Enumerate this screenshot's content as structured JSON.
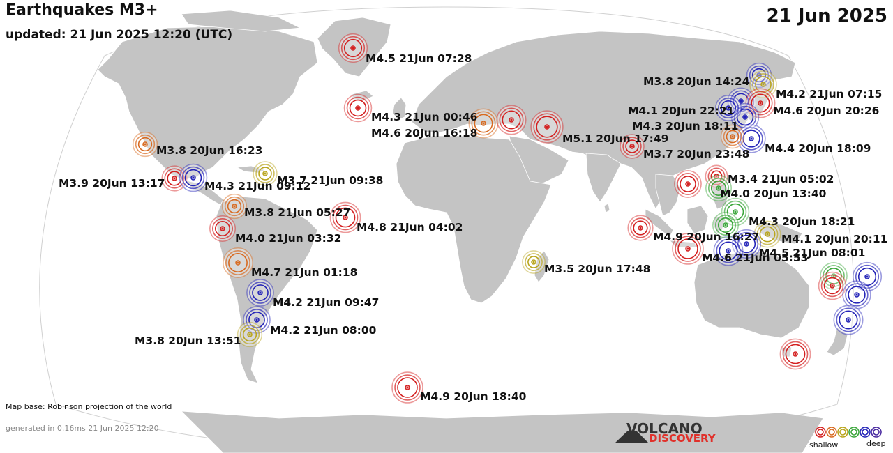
{
  "header": {
    "title": "Earthquakes M3+",
    "updated": "updated: 21 Jun 2025 12:20 (UTC)",
    "date": "21 Jun 2025"
  },
  "footer": {
    "map_base": "Map base: Robinson projection of the world",
    "generated": "generated in 0.16ms 21 Jun 2025 12:20",
    "logo_top": "VOLCANO",
    "logo_bottom": "DISCOVERY"
  },
  "legend": {
    "shallow_label": "shallow",
    "deep_label": "deep",
    "depth_colors": [
      "#d42020",
      "#d86a20",
      "#b9a51c",
      "#3aa63a",
      "#2424b8",
      "#4a2aa0"
    ]
  },
  "colors": {
    "ocean": "#ffffff",
    "land": "#c4c4c4",
    "coast": "#ffffff",
    "frame": "#d0d0d0"
  },
  "quakes": [
    {
      "label": "M4.5 21Jun 07:28",
      "mag": 4.5,
      "depth": "shallow"
    },
    {
      "label": "M4.3 21Jun 00:46",
      "mag": 4.3,
      "depth": "shallow"
    },
    {
      "label": "M4.6 20Jun 16:18",
      "mag": 4.6,
      "depth": "intermediate"
    },
    {
      "label": "M5.1 20Jun 17:49",
      "mag": 5.1,
      "depth": "shallow"
    },
    {
      "label": "M3.7 20Jun 23:48",
      "mag": 3.7,
      "depth": "shallow"
    },
    {
      "label": "M3.8 20Jun 14:24",
      "mag": 3.8,
      "depth": "deep"
    },
    {
      "label": "M4.2 21Jun 07:15",
      "mag": 4.2,
      "depth": "medium"
    },
    {
      "label": "M4.1 20Jun 22:21",
      "mag": 4.1,
      "depth": "deep"
    },
    {
      "label": "M4.6 20Jun 20:26",
      "mag": 4.6,
      "depth": "shallow"
    },
    {
      "label": "M4.3 20Jun 18:11",
      "mag": 4.3,
      "depth": "deep"
    },
    {
      "label": "M4.4 20Jun 18:09",
      "mag": 4.4,
      "depth": "deep"
    },
    {
      "label": "M3.4 21Jun 05:02",
      "mag": 3.4,
      "depth": "shallow"
    },
    {
      "label": "M4.0 20Jun 13:40",
      "mag": 4.0,
      "depth": "medium-deep"
    },
    {
      "label": "M4.3 20Jun 18:21",
      "mag": 4.3,
      "depth": "medium-deep"
    },
    {
      "label": "M4.9 20Jun 16:27",
      "mag": 4.9,
      "depth": "shallow"
    },
    {
      "label": "M4.1 20Jun 20:11",
      "mag": 4.1,
      "depth": "medium"
    },
    {
      "label": "M4.5 21Jun 08:01",
      "mag": 4.5,
      "depth": "deep"
    },
    {
      "label": "M4.6 21Jun 05:53",
      "mag": 4.6,
      "depth": "deep"
    },
    {
      "label": "M3.8 20Jun 16:23",
      "mag": 3.8,
      "depth": "intermediate"
    },
    {
      "label": "M3.9 20Jun 13:17",
      "mag": 3.9,
      "depth": "shallow"
    },
    {
      "label": "M4.3 21Jun 09:12",
      "mag": 4.3,
      "depth": "deep"
    },
    {
      "label": "M3.7 21Jun 09:38",
      "mag": 3.7,
      "depth": "medium"
    },
    {
      "label": "M3.8 21Jun 05:27",
      "mag": 3.8,
      "depth": "intermediate"
    },
    {
      "label": "M4.8 21Jun 04:02",
      "mag": 4.8,
      "depth": "shallow"
    },
    {
      "label": "M4.0 21Jun 03:32",
      "mag": 4.0,
      "depth": "shallow"
    },
    {
      "label": "M4.7 21Jun 01:18",
      "mag": 4.7,
      "depth": "intermediate"
    },
    {
      "label": "M3.5 20Jun 17:48",
      "mag": 3.5,
      "depth": "medium"
    },
    {
      "label": "M4.2 21Jun 09:47",
      "mag": 4.2,
      "depth": "deep"
    },
    {
      "label": "M4.2 21Jun 08:00",
      "mag": 4.2,
      "depth": "deep"
    },
    {
      "label": "M3.8 20Jun 13:51",
      "mag": 3.8,
      "depth": "medium"
    },
    {
      "label": "M4.9 20Jun 18:40",
      "mag": 4.9,
      "depth": "shallow"
    }
  ],
  "unlabeled_quakes": [
    {
      "mag": 4.6,
      "depth": "shallow"
    },
    {
      "mag": 4.0,
      "depth": "deep"
    },
    {
      "mag": 4.2,
      "depth": "medium-deep"
    },
    {
      "mag": 4.3,
      "depth": "shallow"
    },
    {
      "mag": 4.5,
      "depth": "deep"
    },
    {
      "mag": 4.4,
      "depth": "deep"
    },
    {
      "mag": 4.6,
      "depth": "deep"
    },
    {
      "mag": 4.8,
      "depth": "shallow"
    },
    {
      "mag": 3.9,
      "depth": "shallow"
    },
    {
      "mag": 4.2,
      "depth": "shallow"
    },
    {
      "mag": 4.0,
      "depth": "medium-deep"
    },
    {
      "mag": 3.6,
      "depth": "intermediate"
    }
  ]
}
